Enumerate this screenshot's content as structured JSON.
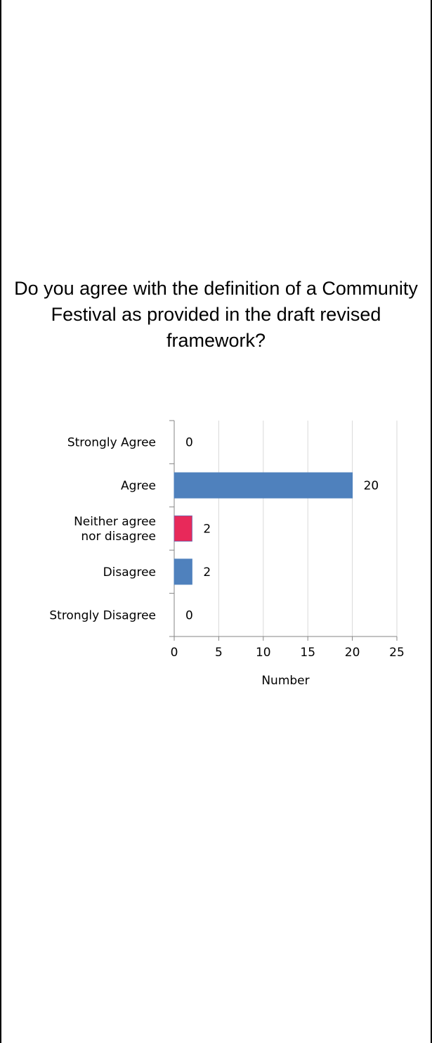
{
  "chart_data": {
    "type": "bar",
    "orientation": "horizontal",
    "title": "Do you agree with the definition of a Community Festival as provided in the draft revised framework?",
    "categories": [
      {
        "label": [
          "Strongly Agree"
        ],
        "value": 0,
        "color": "#4f81bd"
      },
      {
        "label": [
          "Agree"
        ],
        "value": 20,
        "color": "#4f81bd"
      },
      {
        "label": [
          "Neither agree",
          "nor disagree"
        ],
        "value": 2,
        "color": "#e8295a"
      },
      {
        "label": [
          "Disagree"
        ],
        "value": 2,
        "color": "#4f81bd"
      },
      {
        "label": [
          "Strongly Disagree"
        ],
        "value": 0,
        "color": "#4f81bd"
      }
    ],
    "xlabel": "Number",
    "xlim": [
      0,
      25
    ],
    "xticks": [
      0,
      5,
      10,
      15,
      20,
      25
    ],
    "grid": "vertical",
    "legend": "none",
    "data_labels": true
  }
}
